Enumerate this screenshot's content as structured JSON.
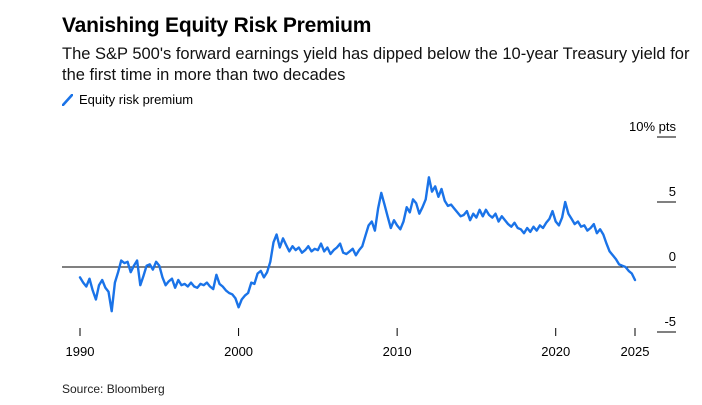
{
  "title": "Vanishing Equity Risk Premium",
  "subtitle": "The S&P 500's forward earnings yield has dipped below the 10-year Treasury yield for the first time in more than two decades",
  "legend": {
    "label": "Equity risk premium",
    "swatch_color": "#1a73e8"
  },
  "source": "Source: Bloomberg",
  "chart_data": {
    "type": "line",
    "title": "Vanishing Equity Risk Premium",
    "xlabel": "",
    "ylabel": "% pts",
    "xlim": [
      1990,
      2025
    ],
    "ylim": [
      -5,
      10
    ],
    "x_ticks": [
      1990,
      2000,
      2010,
      2020,
      2025
    ],
    "x_tick_labels": [
      "1990",
      "2000",
      "2010",
      "2020",
      "2025"
    ],
    "y_ticks": [
      10,
      5,
      0,
      -5
    ],
    "y_tick_labels": [
      "10% pts",
      "5",
      "0",
      "-5"
    ],
    "series": [
      {
        "name": "Equity risk premium",
        "color": "#1a73e8",
        "x": [
          1990.0,
          1990.2,
          1990.4,
          1990.6,
          1990.8,
          1991.0,
          1991.2,
          1991.4,
          1991.6,
          1991.8,
          1992.0,
          1992.2,
          1992.4,
          1992.6,
          1992.8,
          1993.0,
          1993.2,
          1993.4,
          1993.6,
          1993.8,
          1994.0,
          1994.2,
          1994.4,
          1994.6,
          1994.8,
          1995.0,
          1995.2,
          1995.4,
          1995.6,
          1995.8,
          1996.0,
          1996.2,
          1996.4,
          1996.6,
          1996.8,
          1997.0,
          1997.2,
          1997.4,
          1997.6,
          1997.8,
          1998.0,
          1998.2,
          1998.4,
          1998.6,
          1998.8,
          1999.0,
          1999.2,
          1999.4,
          1999.6,
          1999.8,
          2000.0,
          2000.2,
          2000.4,
          2000.6,
          2000.8,
          2001.0,
          2001.2,
          2001.4,
          2001.6,
          2001.8,
          2002.0,
          2002.2,
          2002.4,
          2002.6,
          2002.8,
          2003.0,
          2003.2,
          2003.4,
          2003.6,
          2003.8,
          2004.0,
          2004.2,
          2004.4,
          2004.6,
          2004.8,
          2005.0,
          2005.2,
          2005.4,
          2005.6,
          2005.8,
          2006.0,
          2006.2,
          2006.4,
          2006.6,
          2006.8,
          2007.0,
          2007.2,
          2007.4,
          2007.6,
          2007.8,
          2008.0,
          2008.2,
          2008.4,
          2008.6,
          2008.8,
          2009.0,
          2009.2,
          2009.4,
          2009.6,
          2009.8,
          2010.0,
          2010.2,
          2010.4,
          2010.6,
          2010.8,
          2011.0,
          2011.2,
          2011.4,
          2011.6,
          2011.8,
          2012.0,
          2012.2,
          2012.4,
          2012.6,
          2012.8,
          2013.0,
          2013.2,
          2013.4,
          2013.6,
          2013.8,
          2014.0,
          2014.2,
          2014.4,
          2014.6,
          2014.8,
          2015.0,
          2015.2,
          2015.4,
          2015.6,
          2015.8,
          2016.0,
          2016.2,
          2016.4,
          2016.6,
          2016.8,
          2017.0,
          2017.2,
          2017.4,
          2017.6,
          2017.8,
          2018.0,
          2018.2,
          2018.4,
          2018.6,
          2018.8,
          2019.0,
          2019.2,
          2019.4,
          2019.6,
          2019.8,
          2020.0,
          2020.2,
          2020.4,
          2020.6,
          2020.8,
          2021.0,
          2021.2,
          2021.4,
          2021.6,
          2021.8,
          2022.0,
          2022.2,
          2022.4,
          2022.6,
          2022.8,
          2023.0,
          2023.2,
          2023.4,
          2023.6,
          2023.8,
          2024.0,
          2024.2,
          2024.4,
          2024.6,
          2024.8,
          2025.0
        ],
        "y": [
          -0.8,
          -1.2,
          -1.5,
          -0.9,
          -1.8,
          -2.5,
          -1.4,
          -1.0,
          -1.6,
          -1.9,
          -3.4,
          -1.2,
          -0.4,
          0.5,
          0.3,
          0.4,
          -0.4,
          0.1,
          0.5,
          -1.4,
          -0.7,
          0.1,
          0.2,
          -0.2,
          0.4,
          0.1,
          -0.8,
          -1.4,
          -1.1,
          -0.9,
          -1.6,
          -1.0,
          -1.4,
          -1.3,
          -1.5,
          -1.2,
          -1.5,
          -1.6,
          -1.3,
          -1.4,
          -1.2,
          -1.5,
          -1.7,
          -0.6,
          -1.3,
          -1.5,
          -1.8,
          -2.0,
          -2.1,
          -2.4,
          -3.1,
          -2.5,
          -2.2,
          -2.0,
          -1.2,
          -1.3,
          -0.5,
          -0.3,
          -0.8,
          -0.4,
          0.4,
          1.9,
          2.5,
          1.5,
          2.2,
          1.7,
          1.2,
          1.6,
          1.3,
          1.5,
          1.1,
          1.3,
          1.6,
          1.2,
          1.4,
          1.3,
          1.8,
          1.2,
          1.5,
          1.0,
          1.3,
          1.5,
          1.8,
          1.1,
          1.0,
          1.2,
          1.4,
          0.9,
          1.3,
          1.6,
          2.4,
          3.2,
          3.5,
          2.8,
          4.5,
          5.7,
          4.8,
          3.9,
          3.0,
          3.6,
          3.2,
          2.9,
          3.5,
          4.6,
          4.2,
          5.2,
          4.9,
          4.1,
          4.6,
          5.2,
          6.9,
          5.8,
          6.2,
          5.4,
          6.0,
          5.1,
          4.7,
          4.8,
          4.5,
          4.2,
          3.9,
          4.0,
          4.3,
          3.6,
          4.1,
          3.8,
          4.4,
          3.9,
          4.4,
          4.0,
          3.8,
          4.1,
          3.5,
          3.9,
          3.6,
          3.3,
          3.1,
          3.4,
          3.0,
          2.9,
          2.6,
          3.0,
          2.7,
          3.1,
          2.8,
          3.2,
          3.0,
          3.4,
          3.7,
          4.3,
          3.5,
          3.2,
          3.8,
          5.0,
          4.1,
          3.7,
          3.3,
          3.5,
          3.1,
          3.2,
          2.8,
          3.0,
          3.3,
          2.6,
          2.9,
          2.5,
          1.8,
          1.2,
          0.9,
          0.6,
          0.2,
          0.1,
          0.0,
          -0.3,
          -0.5,
          -1.0
        ]
      }
    ]
  }
}
